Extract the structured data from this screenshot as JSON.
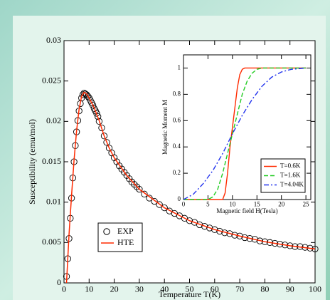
{
  "chart_data": [
    {
      "type": "scatter",
      "xlabel": "Temperature T(K)",
      "ylabel": "Susceptibility (emu/mol)",
      "xlim": [
        0,
        100
      ],
      "ylim": [
        0,
        0.03
      ],
      "xticks": [
        0,
        10,
        20,
        30,
        40,
        50,
        60,
        70,
        80,
        90,
        100
      ],
      "yticks": [
        0,
        0.005,
        0.01,
        0.015,
        0.02,
        0.025,
        0.03
      ],
      "legend": "lower left",
      "series": [
        {
          "name": "EXP",
          "type": "scatter",
          "marker": "circle",
          "color": "#000000",
          "x": [
            1,
            1.5,
            2,
            2.5,
            3,
            3.5,
            4,
            4.5,
            5,
            5.5,
            6,
            6.5,
            7,
            7.5,
            8,
            8.5,
            9,
            9.5,
            10,
            10.5,
            11,
            11.5,
            12,
            12.5,
            13,
            13.5,
            14,
            15,
            16,
            17,
            18,
            19,
            20,
            21,
            22,
            23,
            24,
            25,
            26,
            27,
            28,
            29,
            30,
            32,
            34,
            36,
            38,
            40,
            42,
            44,
            46,
            48,
            50,
            52,
            54,
            56,
            58,
            60,
            62,
            64,
            66,
            68,
            70,
            72,
            74,
            76,
            78,
            80,
            82,
            84,
            86,
            88,
            90,
            92,
            94,
            96,
            98,
            100
          ],
          "values": [
            0.0008,
            0.003,
            0.0055,
            0.008,
            0.0105,
            0.013,
            0.015,
            0.017,
            0.0187,
            0.0201,
            0.0213,
            0.0222,
            0.0229,
            0.0233,
            0.0235,
            0.0234,
            0.0233,
            0.0231,
            0.0229,
            0.0226,
            0.0223,
            0.022,
            0.0216,
            0.0213,
            0.021,
            0.0206,
            0.02,
            0.0192,
            0.0182,
            0.0174,
            0.0167,
            0.0161,
            0.0155,
            0.015,
            0.0145,
            0.0141,
            0.0137,
            0.0133,
            0.0129,
            0.0125,
            0.0122,
            0.0119,
            0.0116,
            0.011,
            0.0105,
            0.0101,
            0.0097,
            0.0093,
            0.0089,
            0.0086,
            0.0083,
            0.008,
            0.0077,
            0.0075,
            0.0072,
            0.007,
            0.0068,
            0.0066,
            0.0064,
            0.0062,
            0.0061,
            0.0059,
            0.0058,
            0.0056,
            0.0055,
            0.0054,
            0.0052,
            0.0051,
            0.005,
            0.0049,
            0.0048,
            0.0047,
            0.0046,
            0.0045,
            0.0045,
            0.0044,
            0.0043,
            0.0042
          ]
        },
        {
          "name": "HTE",
          "type": "line",
          "dash": "solid",
          "color": "#ff2a00",
          "x": [
            1,
            1.5,
            2,
            3,
            4,
            5,
            6,
            7,
            8,
            9,
            10,
            12,
            14,
            16,
            18,
            20,
            25,
            30,
            40,
            50,
            60,
            70,
            80,
            90,
            100
          ],
          "values": [
            0,
            0.003,
            0.006,
            0.0108,
            0.0152,
            0.0188,
            0.0215,
            0.0231,
            0.0236,
            0.0234,
            0.0229,
            0.0217,
            0.0201,
            0.0182,
            0.0167,
            0.0155,
            0.0133,
            0.0116,
            0.0093,
            0.0077,
            0.0066,
            0.0058,
            0.0051,
            0.0046,
            0.0042
          ]
        }
      ]
    },
    {
      "type": "line",
      "xlabel": "Magnetic field H(Tesla)",
      "ylabel": "Magnetic Moment M",
      "xlim": [
        0,
        26
      ],
      "ylim": [
        0,
        1.1
      ],
      "xticks": [
        0,
        5,
        10,
        15,
        20,
        25
      ],
      "yticks": [
        0,
        0.2,
        0.4,
        0.6,
        0.8,
        1
      ],
      "legend": "lower right",
      "series": [
        {
          "name": "T=0.6K",
          "type": "line",
          "dash": "solid",
          "color": "#ff2a00",
          "x": [
            0,
            8,
            8.5,
            9,
            9.5,
            10,
            10.5,
            11,
            11.5,
            12,
            12.5,
            25
          ],
          "values": [
            0,
            0,
            0.05,
            0.2,
            0.4,
            0.55,
            0.7,
            0.85,
            0.95,
            0.99,
            1,
            1
          ]
        },
        {
          "name": "T=1.6K",
          "type": "line",
          "dash": "dashed",
          "color": "#22cc22",
          "x": [
            0,
            5,
            6,
            7,
            8,
            9,
            10,
            11,
            12,
            13,
            14,
            15,
            16,
            25
          ],
          "values": [
            0,
            0,
            0.02,
            0.08,
            0.2,
            0.35,
            0.5,
            0.65,
            0.8,
            0.9,
            0.96,
            0.99,
            1,
            1
          ]
        },
        {
          "name": "T=4.04K",
          "type": "line",
          "dash": "dashdot",
          "color": "#2233ee",
          "x": [
            0,
            2,
            4,
            6,
            8,
            10,
            12,
            14,
            16,
            18,
            20,
            22,
            25
          ],
          "values": [
            0,
            0.04,
            0.12,
            0.22,
            0.35,
            0.5,
            0.64,
            0.76,
            0.86,
            0.93,
            0.97,
            0.99,
            1
          ]
        }
      ]
    }
  ]
}
